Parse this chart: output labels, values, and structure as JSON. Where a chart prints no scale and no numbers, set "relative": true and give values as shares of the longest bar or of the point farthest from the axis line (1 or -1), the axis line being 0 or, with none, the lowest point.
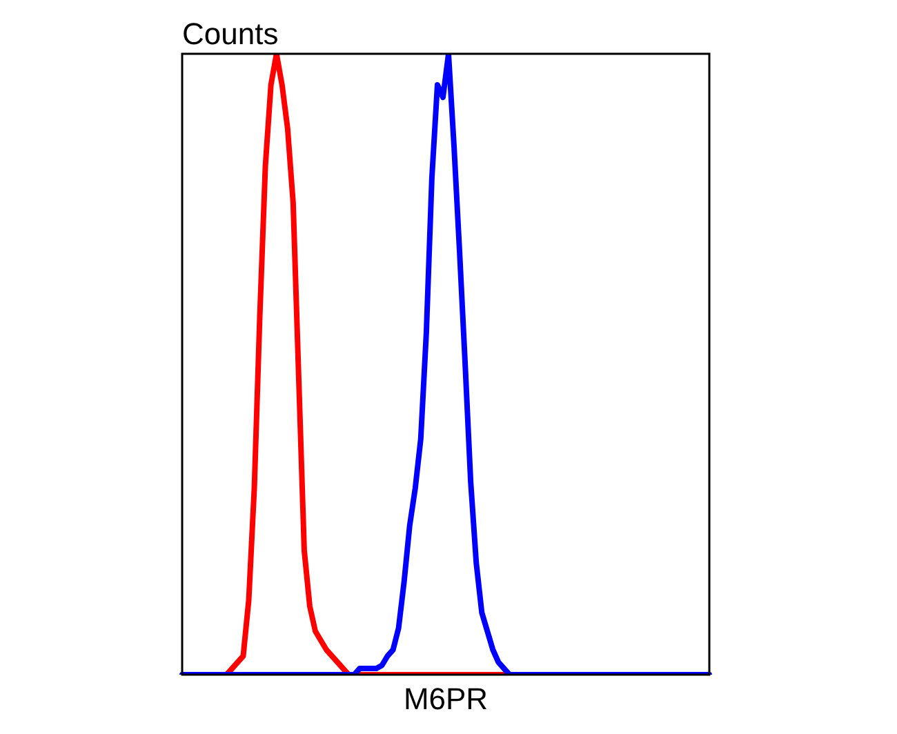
{
  "chart_data": {
    "type": "line",
    "relative": true,
    "ylabel": "Counts",
    "xlabel": "M6PR",
    "grid": false,
    "legend": false,
    "marker": "none",
    "line_style": "solid",
    "categories": [
      null,
      null,
      null,
      null,
      null,
      null,
      null,
      null,
      null,
      null,
      null,
      null,
      null,
      null,
      null,
      null,
      null,
      null,
      null,
      null,
      null,
      null,
      null,
      null,
      null,
      null,
      null,
      null,
      null,
      null,
      null,
      null,
      null,
      null,
      null,
      null,
      null,
      null,
      null,
      null,
      null,
      null,
      null,
      null,
      null,
      null,
      null,
      null,
      null,
      null,
      null,
      null,
      null,
      null,
      null,
      null,
      null,
      null,
      null,
      null,
      null,
      null,
      null,
      null,
      null,
      null,
      null,
      null,
      null,
      null,
      null,
      null,
      null,
      null,
      null,
      null,
      null,
      null,
      null,
      null,
      null,
      null,
      null,
      null,
      null,
      null,
      null,
      null,
      null,
      null,
      null,
      null,
      null,
      null,
      null,
      null
    ],
    "series": [
      {
        "color": "#0000ff",
        "values": [
          0,
          0,
          0,
          0,
          0,
          0,
          0,
          0,
          0,
          0,
          0,
          0,
          0,
          0,
          0,
          0,
          0,
          0,
          0,
          0,
          0,
          0,
          0,
          0,
          0,
          0,
          0,
          0,
          0,
          0,
          0,
          0,
          0.01,
          0.01,
          0.01,
          0.01,
          0.015,
          0.03,
          0.04,
          0.075,
          0.15,
          0.24,
          0.3,
          0.38,
          0.55,
          0.8,
          0.95,
          0.93,
          1.0,
          0.85,
          0.68,
          0.5,
          0.31,
          0.18,
          0.1,
          0.07,
          0.04,
          0.02,
          0.01,
          0,
          0,
          0,
          0,
          0,
          0,
          0,
          0,
          0,
          0,
          0,
          0,
          0,
          0,
          0,
          0,
          0,
          0,
          0,
          0,
          0,
          0,
          0,
          0,
          0,
          0,
          0,
          0,
          0,
          0,
          0,
          0,
          0,
          0,
          0,
          0,
          0
        ]
      },
      {
        "color": "#ff0000",
        "values": [
          null,
          null,
          null,
          null,
          null,
          null,
          0,
          0,
          0,
          0.01,
          0.02,
          0.03,
          0.12,
          0.3,
          0.58,
          0.82,
          0.95,
          1.0,
          0.95,
          0.88,
          0.76,
          0.48,
          0.2,
          0.11,
          0.07,
          0.055,
          0.04,
          0.03,
          0.02,
          0.01,
          0,
          0,
          0,
          0,
          0,
          0,
          0,
          0,
          0,
          0,
          0,
          0,
          0,
          0,
          0,
          0,
          0,
          0,
          0,
          0,
          0,
          0,
          0,
          0,
          0,
          0,
          0,
          0,
          0,
          0,
          0,
          null,
          null,
          null,
          null,
          null,
          null,
          null,
          null,
          null,
          null,
          null,
          null,
          null,
          null,
          null,
          null,
          null,
          null,
          null,
          null,
          null,
          null,
          null,
          null,
          null,
          null,
          null,
          null,
          null,
          null,
          null,
          null,
          null,
          null,
          null
        ]
      }
    ]
  }
}
